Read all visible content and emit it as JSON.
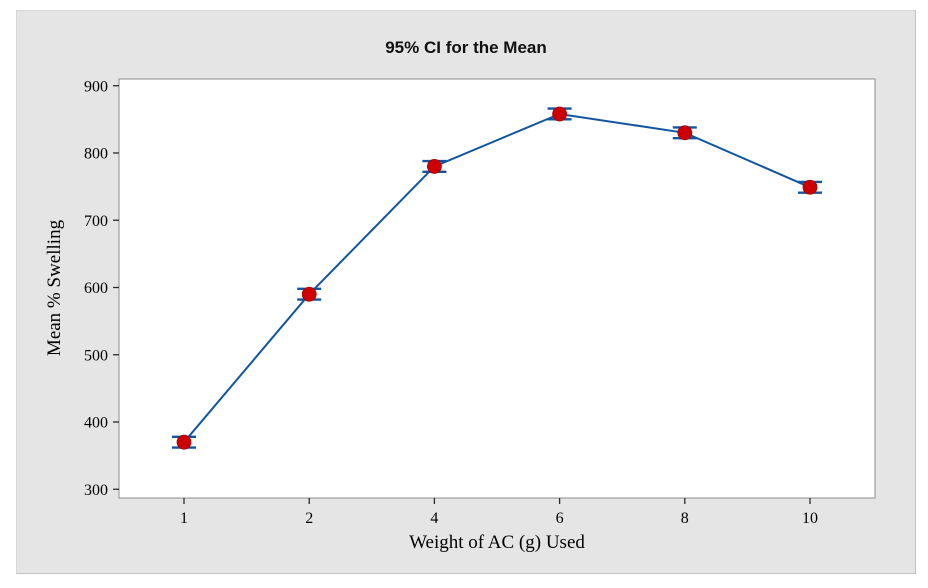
{
  "figure": {
    "panel_bg": "#e5e5e5",
    "plot_bg": "#ffffff",
    "plot_border_color": "#8c8c8c",
    "tick_color": "#2a2a2a",
    "line_color": "#1155a0",
    "marker_color": "#cc0000",
    "title_color": "#111111"
  },
  "chart_data": {
    "type": "line",
    "title": "95% CI for the Mean",
    "xlabel": "Weight of AC (g) Used",
    "ylabel": "Mean % Swelling",
    "categories": [
      "1",
      "2",
      "4",
      "6",
      "8",
      "10"
    ],
    "series": [
      {
        "name": "Mean % Swelling",
        "values": [
          370,
          590,
          780,
          858,
          830,
          749
        ],
        "ci_half_widths": [
          8,
          8,
          8,
          8,
          8,
          8
        ]
      }
    ],
    "error_bars": "95% confidence interval for the mean",
    "y_ticks": [
      300,
      400,
      500,
      600,
      700,
      800,
      900
    ],
    "ylim": [
      287,
      910
    ],
    "grid": false,
    "legend_position": "none",
    "marker": "circle"
  }
}
